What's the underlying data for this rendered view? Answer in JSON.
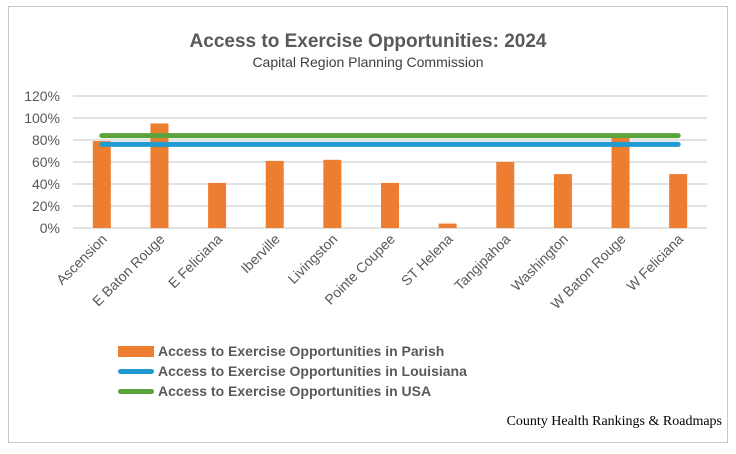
{
  "chart_data": {
    "type": "bar",
    "title": "Access to Exercise Opportunities: 2024",
    "subtitle": "Capital Region Planning Commission",
    "categories": [
      "Ascension",
      "E Baton Rouge",
      "E Feliciana",
      "Iberville",
      "Livingston",
      "Pointe Coupee",
      "ST Helena",
      "Tangipahoa",
      "Washington",
      "W Baton Rouge",
      "W Feliciana"
    ],
    "series": [
      {
        "name": "Access to Exercise Opportunities in Parish",
        "type": "bar",
        "color": "#ED7D31",
        "values": [
          79,
          95,
          41,
          61,
          62,
          41,
          4,
          60,
          49,
          84,
          49
        ]
      },
      {
        "name": "Access to Exercise Opportunities in Louisiana",
        "type": "line",
        "color": "#1F9BD1",
        "values": [
          76,
          76,
          76,
          76,
          76,
          76,
          76,
          76,
          76,
          76,
          76
        ]
      },
      {
        "name": "Access to Exercise Opportunities in USA",
        "type": "line",
        "color": "#5BA33B",
        "values": [
          84,
          84,
          84,
          84,
          84,
          84,
          84,
          84,
          84,
          84,
          84
        ]
      }
    ],
    "yticks": [
      "0%",
      "20%",
      "40%",
      "60%",
      "80%",
      "100%",
      "120%"
    ],
    "ylim": [
      0,
      120
    ],
    "grid": true,
    "legend_placement": "bottom-left",
    "source": "County Health Rankings & Roadmaps"
  }
}
